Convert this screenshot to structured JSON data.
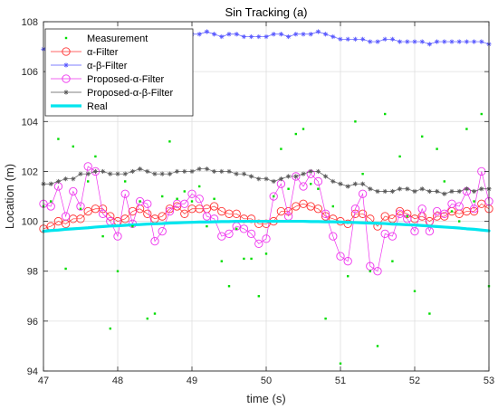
{
  "chart_data": {
    "type": "line",
    "title": "Sin Tracking (a)",
    "xlabel": "time (s)",
    "ylabel": "Location (m)",
    "xlim": [
      47,
      53
    ],
    "ylim": [
      94,
      108
    ],
    "xticks": [
      "47",
      "48",
      "49",
      "50",
      "51",
      "52",
      "53"
    ],
    "yticks": [
      "94",
      "96",
      "98",
      "100",
      "102",
      "104",
      "106",
      "108"
    ],
    "grid": true,
    "legend_position": "top-left",
    "x": [
      47.0,
      47.1,
      47.2,
      47.3,
      47.4,
      47.5,
      47.6,
      47.7,
      47.8,
      47.9,
      48.0,
      48.1,
      48.2,
      48.3,
      48.4,
      48.5,
      48.6,
      48.7,
      48.8,
      48.9,
      49.0,
      49.1,
      49.2,
      49.3,
      49.4,
      49.5,
      49.6,
      49.7,
      49.8,
      49.9,
      50.0,
      50.1,
      50.2,
      50.3,
      50.4,
      50.5,
      50.6,
      50.7,
      50.8,
      50.9,
      51.0,
      51.1,
      51.2,
      51.3,
      51.4,
      51.5,
      51.6,
      51.7,
      51.8,
      51.9,
      52.0,
      52.1,
      52.2,
      52.3,
      52.4,
      52.5,
      52.6,
      52.7,
      52.8,
      52.9,
      53.0
    ],
    "series": [
      {
        "name": "Measurement",
        "style": "point",
        "color": "#00dd00",
        "values": [
          100.6,
          100.8,
          103.3,
          98.1,
          103.0,
          100.5,
          101.6,
          102.6,
          99.4,
          95.7,
          98.0,
          101.6,
          99.8,
          100.8,
          96.1,
          96.3,
          101.0,
          103.2,
          100.9,
          101.2,
          100.8,
          101.4,
          99.8,
          100.9,
          98.4,
          97.4,
          99.7,
          98.5,
          98.5,
          97.0,
          98.7,
          101.0,
          102.9,
          101.3,
          103.5,
          103.7,
          101.5,
          101.3,
          96.1,
          100.6,
          94.3,
          97.8,
          104.0,
          101.9,
          98.0,
          95.0,
          104.3,
          98.4,
          102.6,
          100.2,
          97.2,
          103.4,
          96.3,
          102.9,
          101.6,
          100.4,
          100.0,
          103.7,
          100.8,
          104.3,
          97.4
        ]
      },
      {
        "name": "α-Filter",
        "style": "circle",
        "color": "#ff3333",
        "values": [
          99.7,
          99.8,
          100.0,
          99.9,
          100.1,
          100.1,
          100.4,
          100.5,
          100.5,
          100.2,
          100.0,
          100.1,
          100.4,
          100.5,
          100.3,
          100.1,
          100.2,
          100.5,
          100.6,
          100.3,
          100.5,
          100.5,
          100.5,
          100.6,
          100.4,
          100.3,
          100.3,
          100.1,
          100.1,
          99.9,
          99.9,
          100.0,
          100.4,
          100.4,
          100.6,
          100.7,
          100.6,
          100.5,
          100.2,
          100.1,
          100.0,
          99.9,
          100.3,
          100.3,
          100.1,
          99.8,
          100.2,
          100.1,
          100.4,
          100.3,
          100.1,
          100.2,
          100.0,
          100.2,
          100.2,
          100.4,
          100.3,
          100.4,
          100.4,
          100.7,
          100.5
        ]
      },
      {
        "name": "α-β-Filter",
        "style": "star",
        "color": "#5555ff",
        "values": [
          106.9,
          107.0,
          107.1,
          107.2,
          107.3,
          107.3,
          107.4,
          107.4,
          107.5,
          107.5,
          107.5,
          107.5,
          107.5,
          107.5,
          107.6,
          107.6,
          107.5,
          107.6,
          107.6,
          107.5,
          107.5,
          107.5,
          107.6,
          107.5,
          107.4,
          107.5,
          107.5,
          107.4,
          107.4,
          107.4,
          107.4,
          107.5,
          107.5,
          107.4,
          107.5,
          107.5,
          107.5,
          107.6,
          107.5,
          107.4,
          107.3,
          107.3,
          107.3,
          107.3,
          107.2,
          107.2,
          107.3,
          107.3,
          107.2,
          107.2,
          107.2,
          107.2,
          107.1,
          107.2,
          107.2,
          107.2,
          107.2,
          107.2,
          107.2,
          107.2,
          107.1
        ]
      },
      {
        "name": "Proposed-α-Filter",
        "style": "circle",
        "color": "#ee33ee",
        "values": [
          100.7,
          100.6,
          101.4,
          100.2,
          101.2,
          100.6,
          102.2,
          102.0,
          100.3,
          100.0,
          99.4,
          101.1,
          99.9,
          100.8,
          100.7,
          99.2,
          99.6,
          100.4,
          100.7,
          100.7,
          101.1,
          100.9,
          100.2,
          100.1,
          99.4,
          99.5,
          99.8,
          99.7,
          99.5,
          99.1,
          99.3,
          101.0,
          101.5,
          100.2,
          101.8,
          101.4,
          101.9,
          101.6,
          100.3,
          99.4,
          98.6,
          98.4,
          100.5,
          101.1,
          98.2,
          98.0,
          99.5,
          99.4,
          100.3,
          100.1,
          99.6,
          100.5,
          99.6,
          100.4,
          100.3,
          100.7,
          100.6,
          101.2,
          100.5,
          102.0,
          100.8
        ]
      },
      {
        "name": "Proposed-α-β-Filter",
        "style": "asterisk",
        "color": "#555555",
        "values": [
          101.5,
          101.5,
          101.6,
          101.7,
          101.7,
          101.9,
          101.9,
          102.0,
          102.0,
          101.9,
          101.9,
          101.9,
          102.0,
          102.1,
          102.0,
          101.9,
          101.9,
          101.9,
          102.0,
          102.0,
          102.0,
          102.1,
          102.1,
          102.0,
          102.0,
          102.0,
          101.9,
          101.9,
          101.8,
          101.7,
          101.7,
          101.6,
          101.7,
          101.8,
          101.8,
          101.9,
          102.0,
          102.0,
          101.8,
          101.6,
          101.5,
          101.4,
          101.5,
          101.5,
          101.3,
          101.2,
          101.2,
          101.2,
          101.3,
          101.3,
          101.2,
          101.3,
          101.2,
          101.2,
          101.1,
          101.2,
          101.2,
          101.3,
          101.2,
          101.3,
          101.3
        ]
      },
      {
        "name": "Real",
        "style": "thickline",
        "color": "#00e5ee",
        "values": [
          99.6,
          99.63,
          99.65,
          99.68,
          99.7,
          99.72,
          99.74,
          99.77,
          99.79,
          99.81,
          99.82,
          99.84,
          99.86,
          99.87,
          99.89,
          99.9,
          99.91,
          99.93,
          99.94,
          99.95,
          99.96,
          99.97,
          99.97,
          99.98,
          99.99,
          99.99,
          100.0,
          100.0,
          100.0,
          100.0,
          100.0,
          100.0,
          100.0,
          100.0,
          100.0,
          100.0,
          99.99,
          99.99,
          99.98,
          99.98,
          99.97,
          99.96,
          99.95,
          99.94,
          99.93,
          99.92,
          99.91,
          99.89,
          99.88,
          99.86,
          99.85,
          99.83,
          99.81,
          99.79,
          99.77,
          99.75,
          99.73,
          99.7,
          99.68,
          99.65,
          99.62
        ]
      }
    ]
  }
}
